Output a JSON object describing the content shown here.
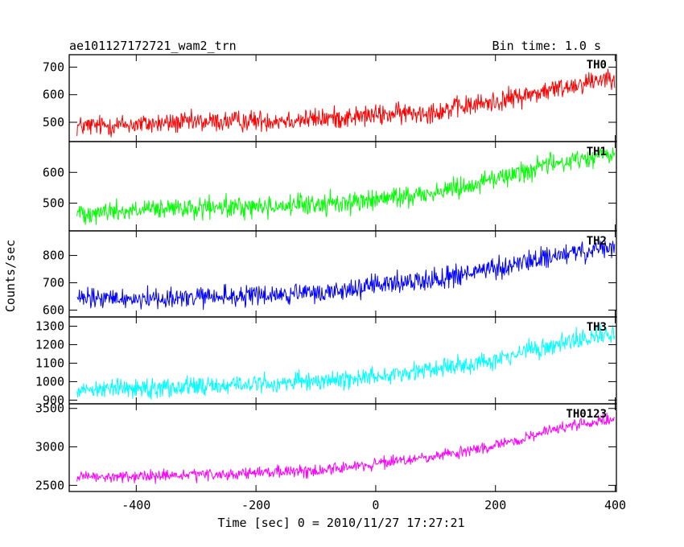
{
  "header": {
    "title": "ae101127172721_wam2_trn",
    "bin_time": "Bin time: 1.0 s"
  },
  "chart_data": {
    "type": "line",
    "xlabel": "Time [sec] 0 = 2010/11/27 17:27:21",
    "ylabel": "Counts/sec",
    "xlim": [
      -512,
      402
    ],
    "x_range": [
      -499,
      399
    ],
    "x_ticks": [
      -400,
      -200,
      0,
      200,
      400
    ],
    "panels": [
      {
        "label": "TH0",
        "color": "#ff0000",
        "ylim": [
          430,
          745
        ],
        "y_ticks": [
          500,
          600,
          700
        ],
        "trend": [
          [
            -499,
            485
          ],
          [
            -300,
            500
          ],
          [
            -100,
            512
          ],
          [
            0,
            525
          ],
          [
            100,
            540
          ],
          [
            200,
            575
          ],
          [
            300,
            620
          ],
          [
            399,
            670
          ]
        ],
        "noise_amplitude": 28
      },
      {
        "label": "TH1",
        "color": "#00ff00",
        "ylim": [
          410,
          700
        ],
        "y_ticks": [
          500,
          600
        ],
        "trend": [
          [
            -499,
            470
          ],
          [
            -300,
            482
          ],
          [
            -100,
            495
          ],
          [
            0,
            510
          ],
          [
            100,
            535
          ],
          [
            200,
            580
          ],
          [
            300,
            630
          ],
          [
            399,
            660
          ]
        ],
        "noise_amplitude": 25
      },
      {
        "label": "TH2",
        "color": "#0000ff",
        "ylim": [
          575,
          890
        ],
        "y_ticks": [
          600,
          700,
          800
        ],
        "trend": [
          [
            -499,
            640
          ],
          [
            -300,
            645
          ],
          [
            -100,
            660
          ],
          [
            0,
            690
          ],
          [
            100,
            715
          ],
          [
            200,
            750
          ],
          [
            300,
            800
          ],
          [
            399,
            825
          ]
        ],
        "noise_amplitude": 28
      },
      {
        "label": "TH3",
        "color": "#00ffff",
        "ylim": [
          880,
          1350
        ],
        "y_ticks": [
          900,
          1000,
          1100,
          1200,
          1300
        ],
        "trend": [
          [
            -499,
            960
          ],
          [
            -300,
            975
          ],
          [
            -100,
            1000
          ],
          [
            0,
            1030
          ],
          [
            100,
            1070
          ],
          [
            200,
            1120
          ],
          [
            300,
            1200
          ],
          [
            399,
            1260
          ]
        ],
        "noise_amplitude": 38
      },
      {
        "label": "TH0123",
        "color": "#ff00ff",
        "ylim": [
          2420,
          3560
        ],
        "y_ticks": [
          2500,
          3000,
          3500
        ],
        "trend": [
          [
            -499,
            2600
          ],
          [
            -300,
            2630
          ],
          [
            -100,
            2690
          ],
          [
            0,
            2780
          ],
          [
            100,
            2870
          ],
          [
            200,
            3010
          ],
          [
            300,
            3230
          ],
          [
            399,
            3370
          ]
        ],
        "noise_amplitude": 55
      }
    ]
  }
}
